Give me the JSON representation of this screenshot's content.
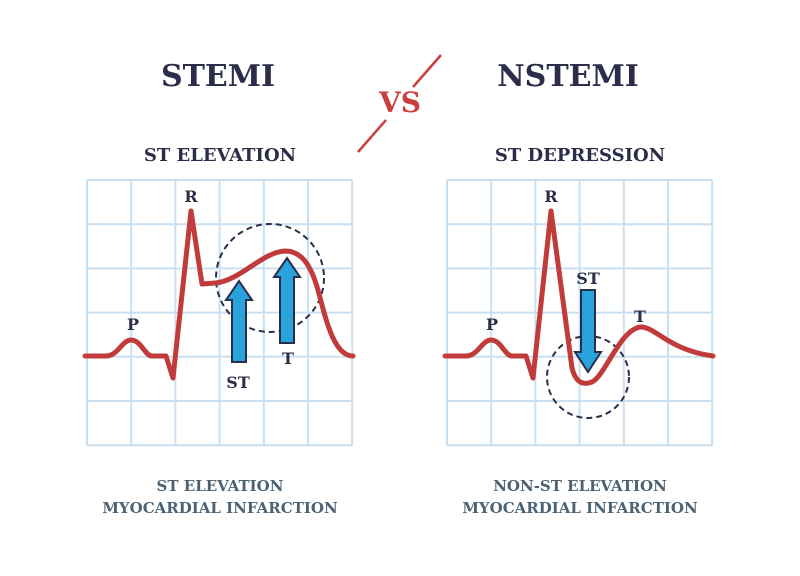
{
  "titles": {
    "left": "STEMI",
    "vs": "VS",
    "right": "NSTEMI"
  },
  "left": {
    "subtitle": "ST ELEVATION",
    "labels": {
      "p": "P",
      "r": "R",
      "st": "ST",
      "t": "T"
    },
    "caption_line1": "ST ELEVATION",
    "caption_line2": "MYOCARDIAL INFARCTION"
  },
  "right": {
    "subtitle": "ST DEPRESSION",
    "labels": {
      "p": "P",
      "r": "R",
      "st": "ST",
      "t": "T"
    },
    "caption_line1": "NON-ST ELEVATION",
    "caption_line2": "MYOCARDIAL INFARCTION"
  },
  "colors": {
    "title": "#2b2d4a",
    "accent_red": "#c94040",
    "ecg_line": "#c23b3b",
    "arrow": "#29a3dc",
    "grid": "#c9e0f2",
    "caption": "#4b6274"
  }
}
